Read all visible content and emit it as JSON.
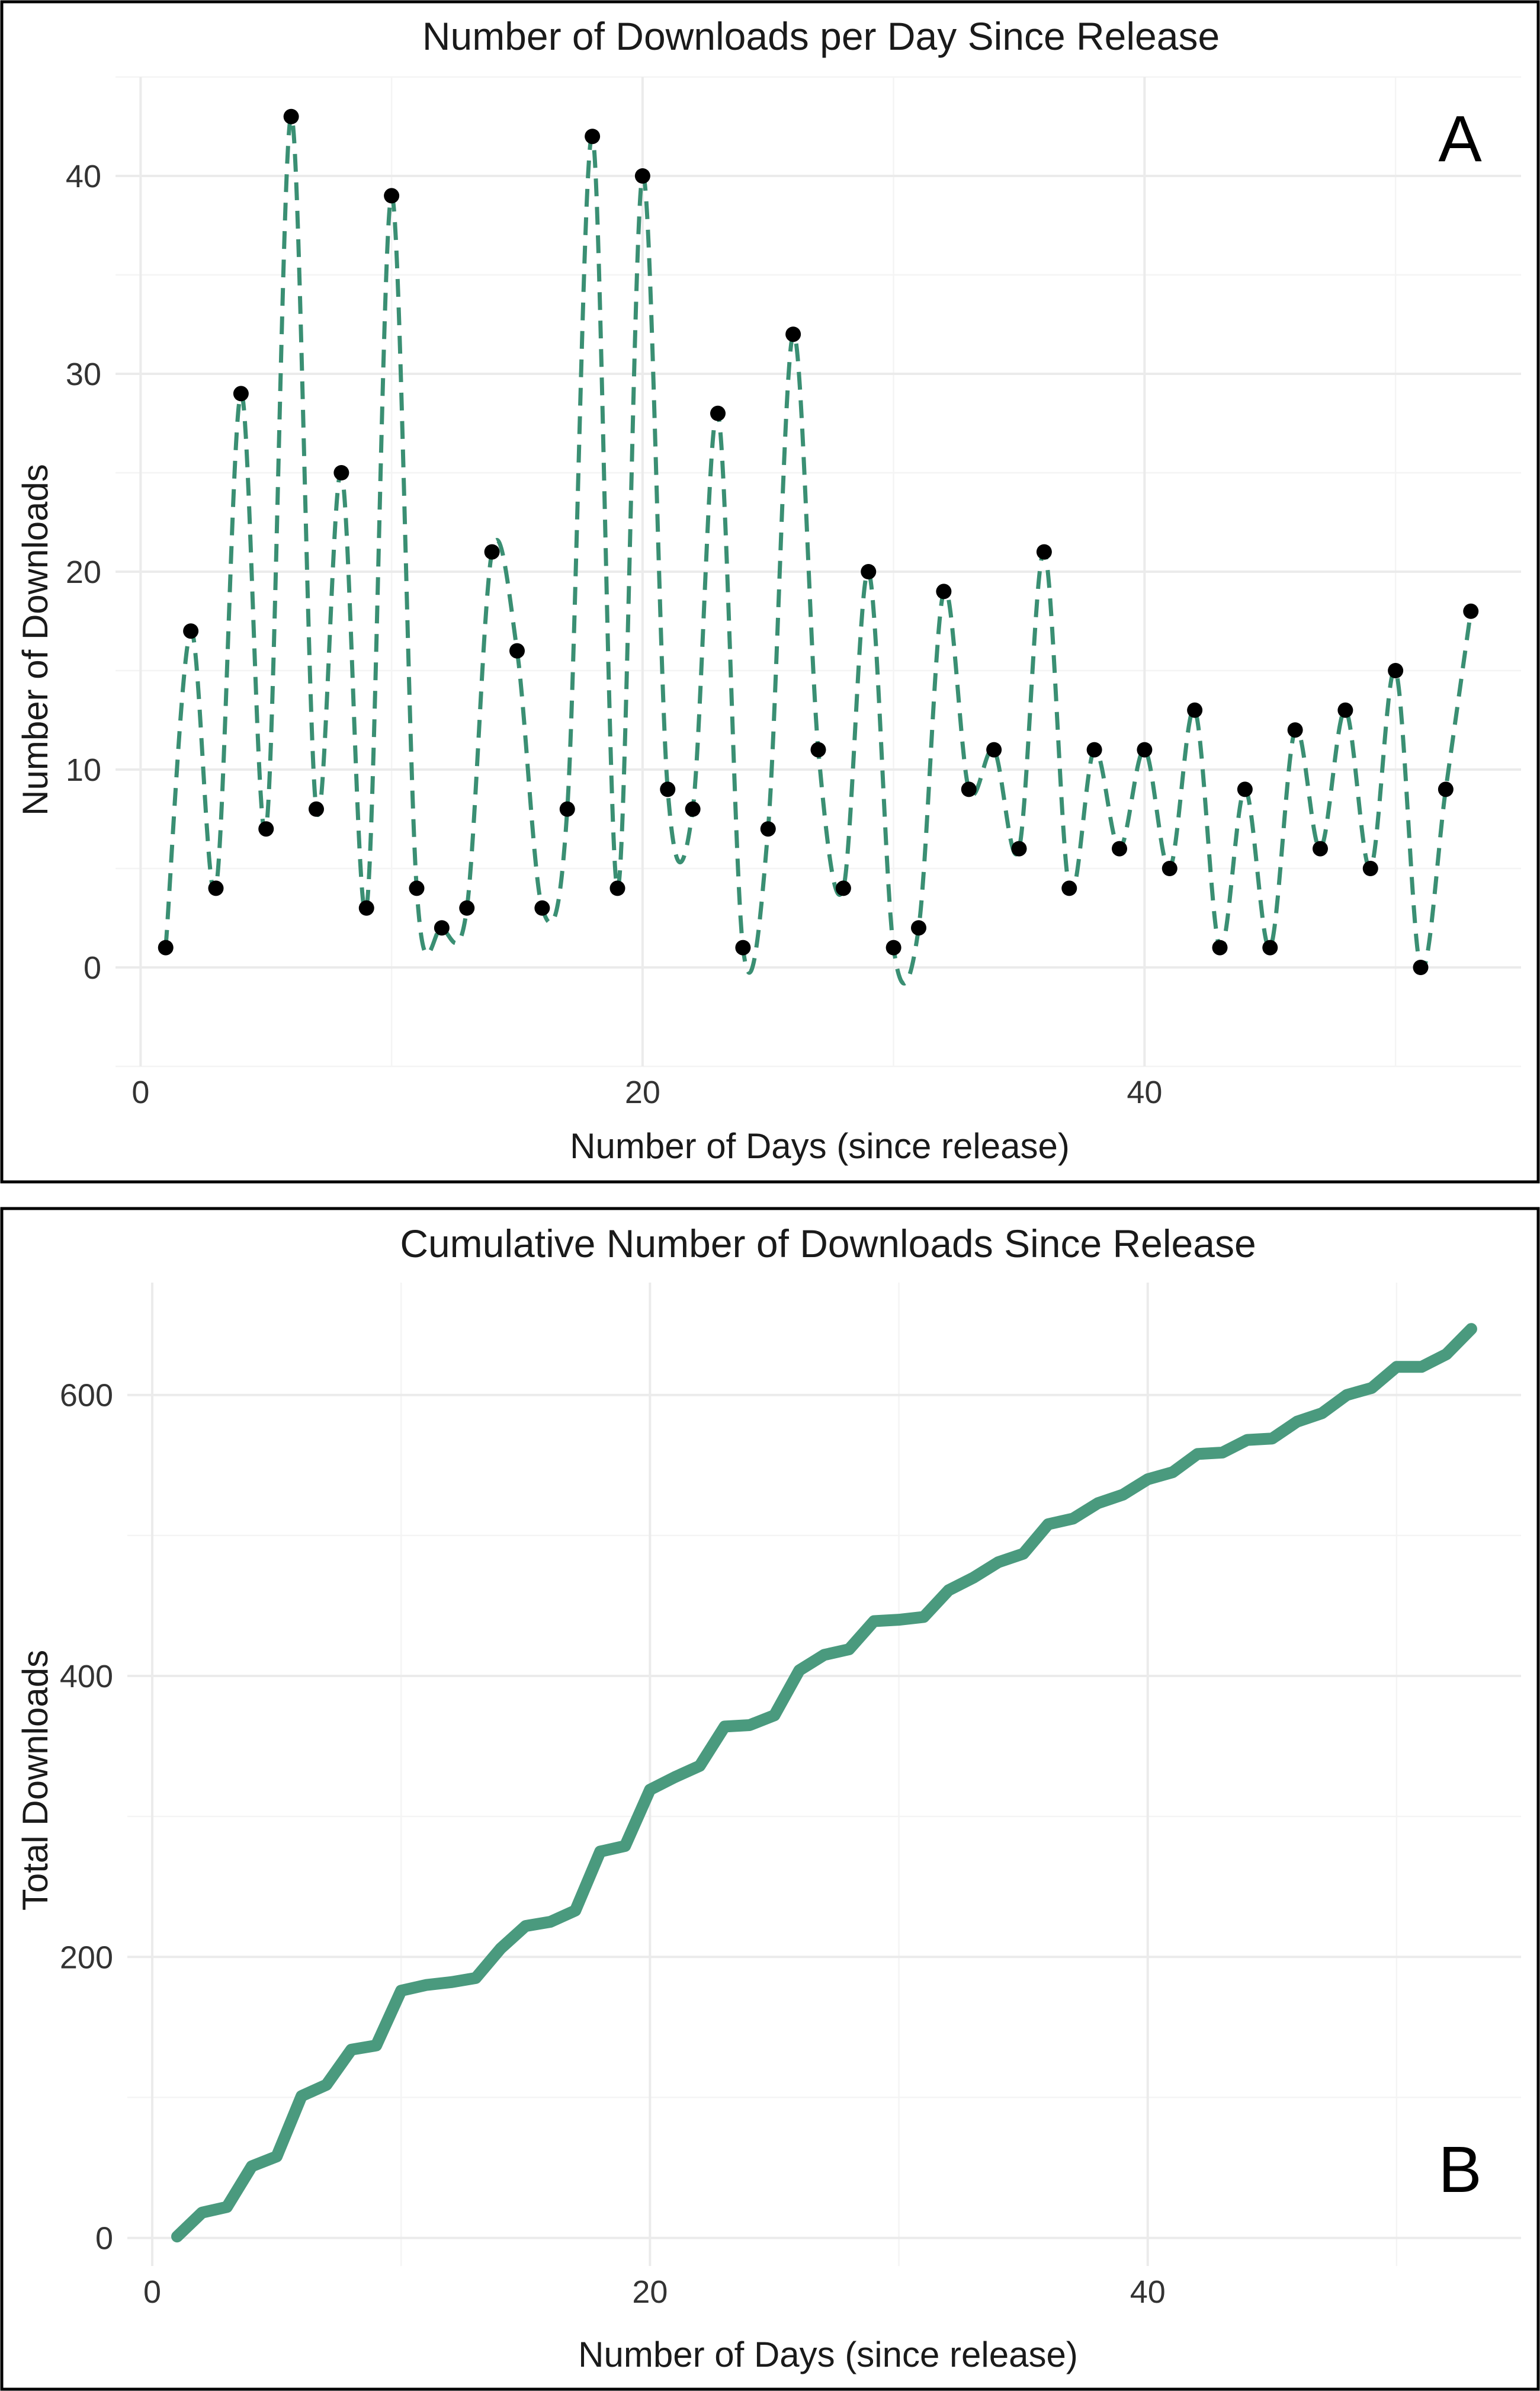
{
  "colors": {
    "line": "#3a8f73",
    "cumulative_line": "#4a9a7e",
    "points": "#000000",
    "grid": "#ebebeb",
    "frame": "#000000"
  },
  "chart_data": [
    {
      "type": "line",
      "panel_label": "A",
      "title": "Number of Downloads per Day Since Release",
      "xlabel": "Number of Days (since release)",
      "ylabel": "Number of Downloads",
      "xlim": [
        -1,
        55
      ],
      "ylim": [
        -5,
        45
      ],
      "xticks": [
        0,
        20,
        40
      ],
      "yticks": [
        0,
        10,
        20,
        30,
        40
      ],
      "line_style": "dashed smoothed",
      "grid": true,
      "x": [
        1,
        2,
        3,
        4,
        5,
        6,
        7,
        8,
        9,
        10,
        11,
        12,
        13,
        14,
        15,
        16,
        17,
        18,
        19,
        20,
        21,
        22,
        23,
        24,
        25,
        26,
        27,
        28,
        29,
        30,
        31,
        32,
        33,
        34,
        35,
        36,
        37,
        38,
        39,
        40,
        41,
        42,
        43,
        44,
        45,
        46,
        47,
        48,
        49,
        50,
        51,
        52,
        53
      ],
      "values": [
        1,
        17,
        4,
        29,
        7,
        43,
        8,
        25,
        3,
        39,
        4,
        2,
        3,
        21,
        16,
        3,
        8,
        42,
        4,
        40,
        9,
        8,
        28,
        1,
        7,
        32,
        11,
        4,
        20,
        1,
        2,
        19,
        9,
        11,
        6,
        21,
        4,
        11,
        6,
        11,
        5,
        13,
        1,
        9,
        1,
        12,
        6,
        13,
        5,
        15,
        0,
        9,
        18
      ]
    },
    {
      "type": "line",
      "panel_label": "B",
      "title": "Cumulative Number of Downloads Since Release",
      "xlabel": "Number of Days (since release)",
      "ylabel": "Total Downloads",
      "xlim": [
        -1,
        55
      ],
      "ylim": [
        -20,
        680
      ],
      "xticks": [
        0,
        20,
        40
      ],
      "yticks": [
        0,
        200,
        400,
        600
      ],
      "grid": true,
      "x": [
        1,
        2,
        3,
        4,
        5,
        6,
        7,
        8,
        9,
        10,
        11,
        12,
        13,
        14,
        15,
        16,
        17,
        18,
        19,
        20,
        21,
        22,
        23,
        24,
        25,
        26,
        27,
        28,
        29,
        30,
        31,
        32,
        33,
        34,
        35,
        36,
        37,
        38,
        39,
        40,
        41,
        42,
        43,
        44,
        45,
        46,
        47,
        48,
        49,
        50,
        51,
        52,
        53
      ],
      "values": [
        1,
        18,
        22,
        51,
        58,
        101,
        109,
        134,
        137,
        176,
        180,
        182,
        185,
        206,
        222,
        225,
        233,
        275,
        279,
        319,
        328,
        336,
        364,
        365,
        372,
        404,
        415,
        419,
        439,
        440,
        442,
        461,
        470,
        481,
        487,
        508,
        512,
        523,
        529,
        540,
        545,
        558,
        559,
        568,
        569,
        581,
        587,
        600,
        605,
        620,
        620,
        629,
        647
      ]
    }
  ]
}
